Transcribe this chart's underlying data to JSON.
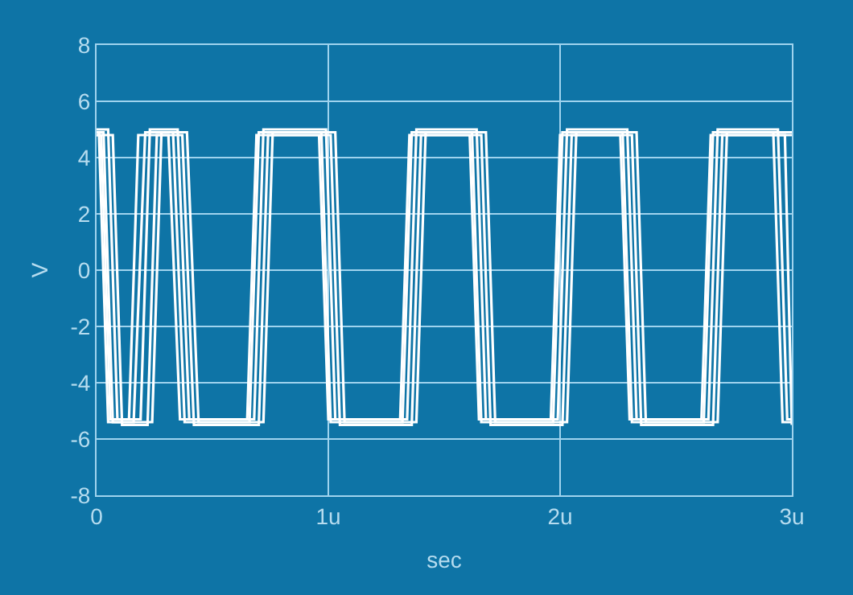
{
  "chart_data": {
    "type": "line",
    "xlabel": "sec",
    "ylabel": "V",
    "xlim": [
      0,
      3
    ],
    "xticks": [
      0,
      {
        "value": 1,
        "label": "1u"
      },
      {
        "value": 2,
        "label": "2u"
      },
      {
        "value": 3,
        "label": "3u"
      }
    ],
    "ylim": [
      -8,
      8
    ],
    "yticks": [
      -8,
      -6,
      -4,
      -2,
      0,
      2,
      4,
      6,
      8
    ],
    "grid": true,
    "line_style": "solid",
    "series": [
      {
        "color": "#ffffff",
        "x": [
          0,
          0.03,
          0.07,
          0.16,
          0.21,
          0.33,
          0.38,
          0.66,
          0.7,
          0.97,
          1.01,
          1.32,
          1.36,
          1.62,
          1.66,
          1.97,
          2.01,
          2.27,
          2.31,
          2.62,
          2.66,
          2.92,
          2.96,
          3.0
        ],
        "values": [
          4.9,
          4.9,
          -5.4,
          -5.4,
          4.9,
          4.9,
          -5.4,
          -5.4,
          4.9,
          4.9,
          -5.4,
          -5.4,
          4.9,
          4.9,
          -5.4,
          -5.4,
          4.9,
          4.9,
          -5.4,
          -5.4,
          4.9,
          4.9,
          -5.4,
          -5.4
        ]
      },
      {
        "color": "#ffffff",
        "x": [
          0,
          0.05,
          0.09,
          0.19,
          0.23,
          0.35,
          0.4,
          0.68,
          0.72,
          0.99,
          1.03,
          1.34,
          1.38,
          1.64,
          1.68,
          1.99,
          2.03,
          2.29,
          2.33,
          2.64,
          2.68,
          2.94,
          2.98,
          3.0
        ],
        "values": [
          5.0,
          5.0,
          -5.3,
          -5.3,
          5.0,
          5.0,
          -5.3,
          -5.3,
          5.0,
          5.0,
          -5.3,
          -5.3,
          5.0,
          5.0,
          -5.3,
          -5.3,
          5.0,
          5.0,
          -5.3,
          -5.3,
          5.0,
          5.0,
          -5.3,
          -5.3
        ]
      },
      {
        "color": "#ffffff",
        "x": [
          0,
          0.07,
          0.11,
          0.22,
          0.26,
          0.37,
          0.42,
          0.7,
          0.74,
          1.01,
          1.05,
          1.36,
          1.4,
          1.66,
          1.7,
          2.01,
          2.05,
          2.31,
          2.35,
          2.66,
          2.7,
          2.97,
          3.0
        ],
        "values": [
          4.8,
          4.8,
          -5.5,
          -5.5,
          4.8,
          4.8,
          -5.5,
          -5.5,
          4.8,
          4.8,
          -5.5,
          -5.5,
          4.8,
          4.8,
          -5.5,
          -5.5,
          4.8,
          4.8,
          -5.5,
          -5.5,
          4.8,
          4.8,
          -5.5
        ]
      },
      {
        "color": "#ffffff",
        "x": [
          0,
          0.01,
          0.05,
          0.24,
          0.28,
          0.39,
          0.44,
          0.72,
          0.76,
          1.03,
          1.07,
          1.38,
          1.42,
          1.68,
          1.72,
          2.03,
          2.07,
          2.33,
          2.37,
          2.68,
          2.72,
          3.0
        ],
        "values": [
          4.9,
          4.9,
          -5.4,
          -5.4,
          4.9,
          4.9,
          -5.4,
          -5.4,
          4.9,
          4.9,
          -5.4,
          -5.4,
          4.9,
          4.9,
          -5.4,
          -5.4,
          4.9,
          4.9,
          -5.4,
          -5.4,
          4.9,
          4.9
        ]
      },
      {
        "color": "#ffffff",
        "x": [
          0,
          0.02,
          0.06,
          0.14,
          0.18,
          0.31,
          0.36,
          0.65,
          0.69,
          0.96,
          1.0,
          1.31,
          1.35,
          1.61,
          1.65,
          1.96,
          2.0,
          2.26,
          2.3,
          2.61,
          2.65,
          3.0
        ],
        "values": [
          4.8,
          4.8,
          -5.3,
          -5.3,
          4.8,
          4.8,
          -5.3,
          -5.3,
          4.8,
          4.8,
          -5.3,
          -5.3,
          4.8,
          4.8,
          -5.3,
          -5.3,
          4.8,
          4.8,
          -5.3,
          -5.3,
          4.8,
          4.8
        ]
      }
    ]
  }
}
